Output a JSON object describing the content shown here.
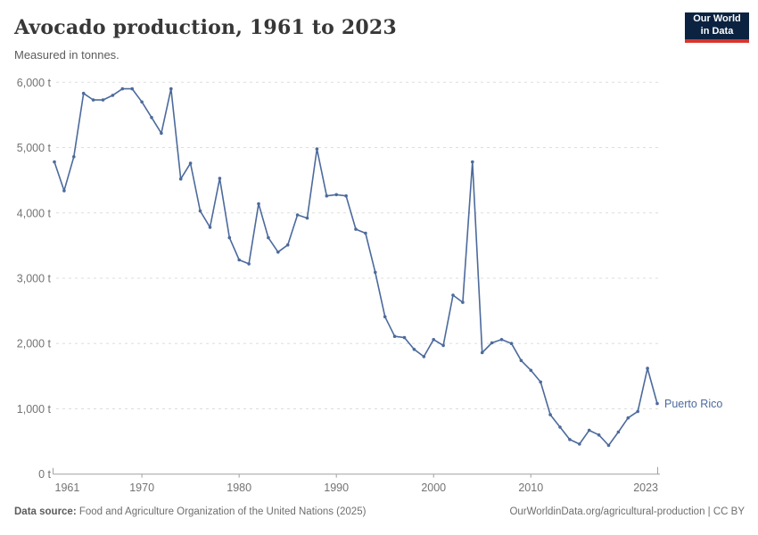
{
  "header": {
    "title": "Avocado production, 1961 to 2023",
    "subtitle": "Measured in tonnes.",
    "logo": {
      "line1": "Our World",
      "line2": "in Data"
    }
  },
  "chart_data": {
    "type": "line",
    "title": "Avocado production, 1961 to 2023",
    "unit": "tonnes",
    "grid": "horizontal dashed",
    "legend_position": "end-of-line label",
    "ylim": [
      0,
      6000
    ],
    "y_ticks": [
      0,
      1000,
      2000,
      3000,
      4000,
      5000,
      6000
    ],
    "y_tick_labels": [
      "0 t",
      "1,000 t",
      "2,000 t",
      "3,000 t",
      "4,000 t",
      "5,000 t",
      "6,000 t"
    ],
    "x_ticks": [
      1961,
      1970,
      1980,
      1990,
      2000,
      2010,
      2023
    ],
    "x_tick_labels": [
      "1961",
      "1970",
      "1980",
      "1990",
      "2000",
      "2010",
      "2023"
    ],
    "xlim": [
      1961,
      2023
    ],
    "series": [
      {
        "name": "Puerto Rico",
        "color": "#4c6a9c",
        "x": [
          1961,
          1962,
          1963,
          1964,
          1965,
          1966,
          1967,
          1968,
          1969,
          1970,
          1971,
          1972,
          1973,
          1974,
          1975,
          1976,
          1977,
          1978,
          1979,
          1980,
          1981,
          1982,
          1983,
          1984,
          1985,
          1986,
          1987,
          1988,
          1989,
          1990,
          1991,
          1992,
          1993,
          1994,
          1995,
          1996,
          1997,
          1998,
          1999,
          2000,
          2001,
          2002,
          2003,
          2004,
          2005,
          2006,
          2007,
          2008,
          2009,
          2010,
          2011,
          2012,
          2013,
          2014,
          2015,
          2016,
          2017,
          2018,
          2019,
          2020,
          2021,
          2022,
          2023
        ],
        "values": [
          4780,
          4340,
          4860,
          5830,
          5730,
          5730,
          5800,
          5900,
          5900,
          5700,
          5460,
          5220,
          5900,
          4520,
          4760,
          4030,
          3780,
          4530,
          3620,
          3280,
          3220,
          4140,
          3620,
          3400,
          3510,
          3970,
          3920,
          4980,
          4260,
          4280,
          4260,
          3750,
          3690,
          3090,
          2410,
          2110,
          2090,
          1910,
          1800,
          2060,
          1970,
          2740,
          2630,
          4780,
          1860,
          2010,
          2060,
          2000,
          1740,
          1590,
          1410,
          910,
          720,
          530,
          460,
          670,
          600,
          440,
          645,
          860,
          960,
          1620,
          1080
        ]
      }
    ]
  },
  "footer": {
    "datasource_label": "Data source:",
    "datasource_text": " Food and Agriculture Organization of the United Nations (2025)",
    "license_text": "OurWorldinData.org/agricultural-production | CC BY"
  },
  "colors": {
    "line": "#4c6a9c",
    "gridline": "#dddddd",
    "axis": "#a1a1a1",
    "tick_label": "#737373",
    "logo_bg": "#0b2341",
    "logo_accent": "#d8352e"
  }
}
